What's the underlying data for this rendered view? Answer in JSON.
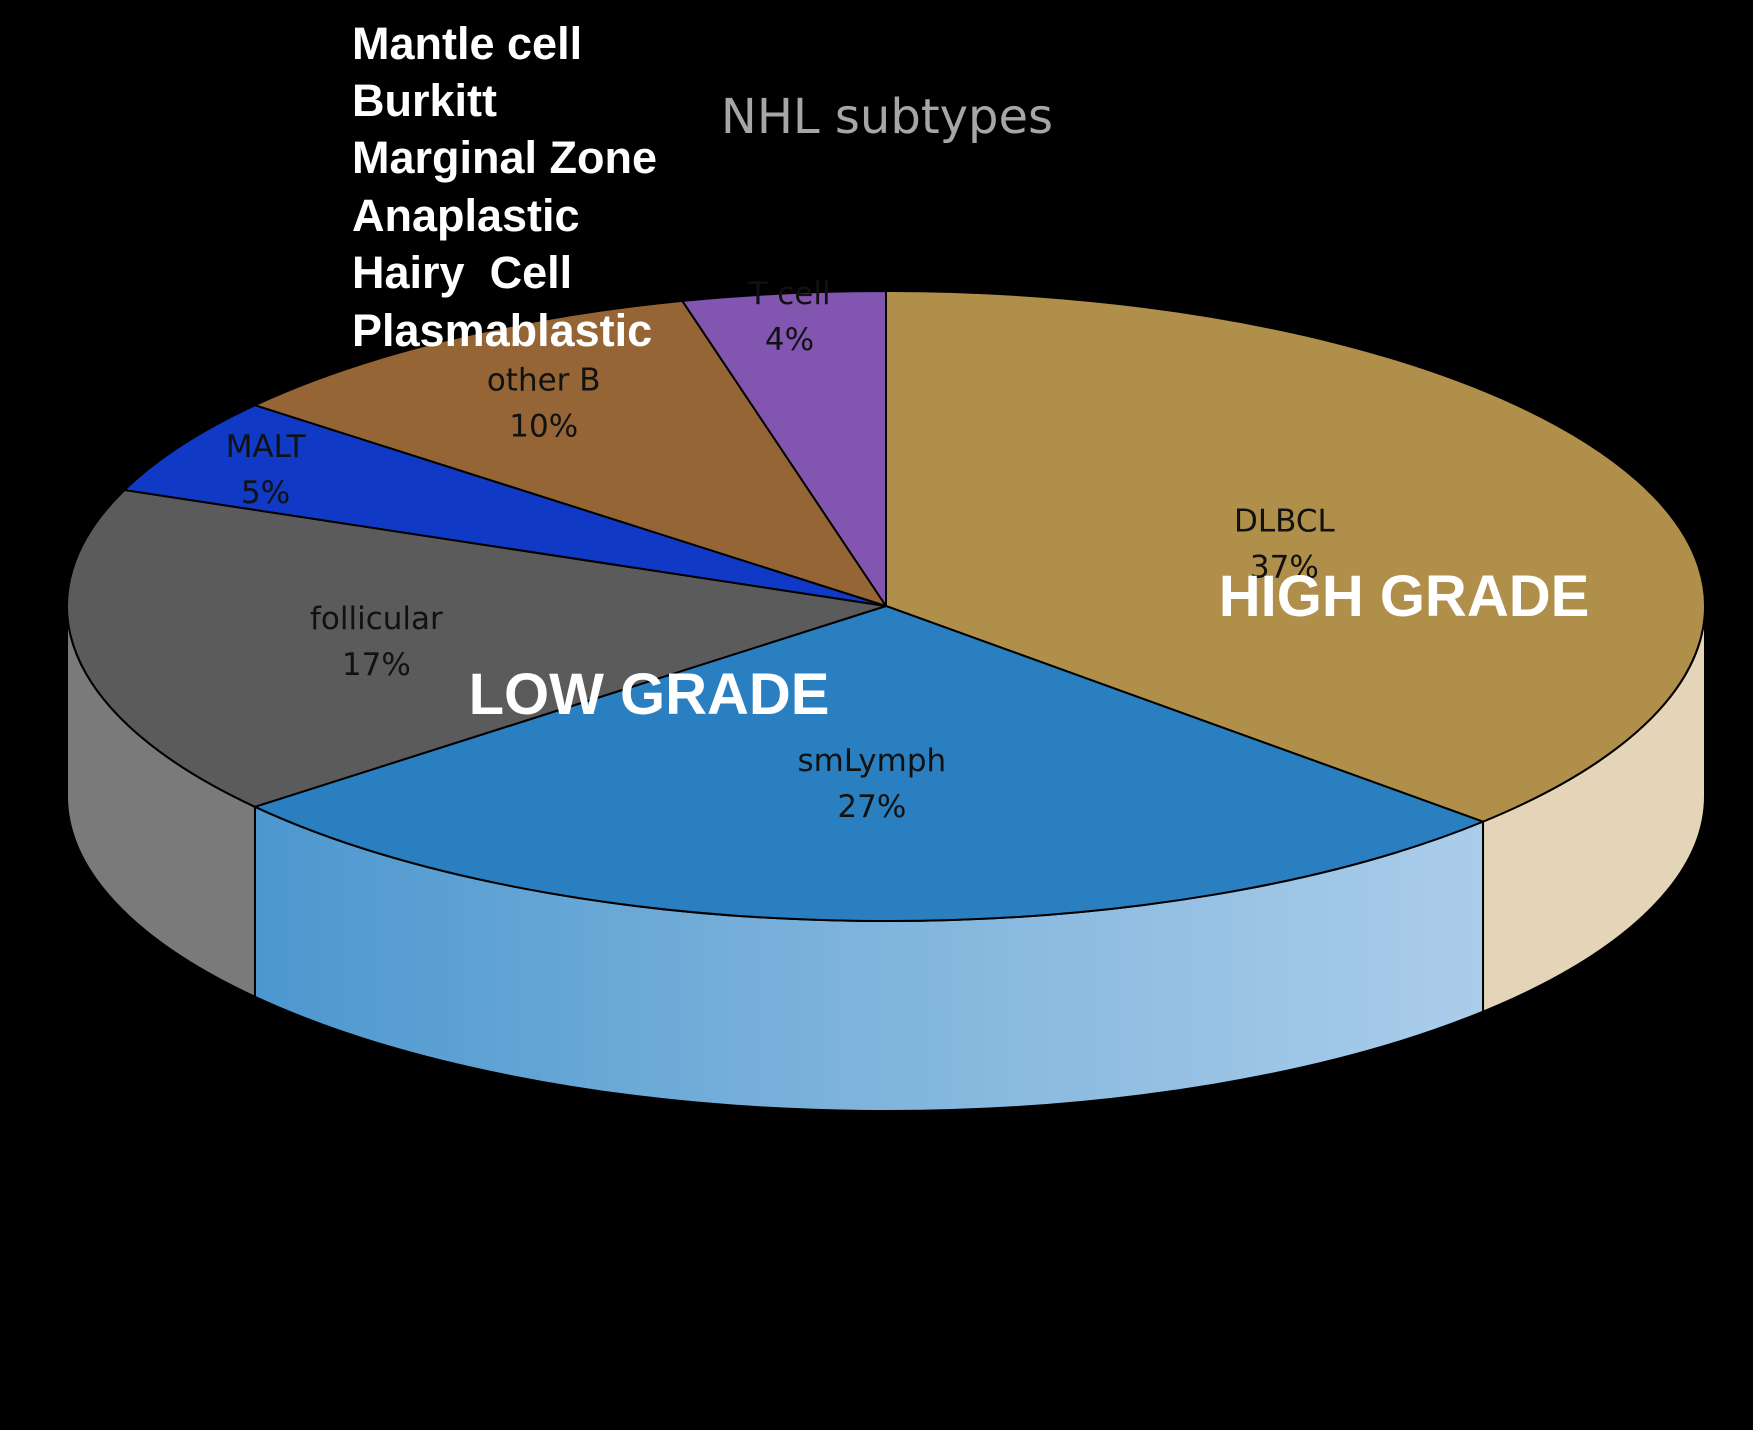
{
  "chart_data": {
    "type": "pie",
    "title": "NHL subtypes",
    "categories": [
      "DLBCL",
      "smLymph",
      "follicular",
      "MALT",
      "other B",
      "T cell"
    ],
    "values": [
      37,
      27,
      17,
      5,
      10,
      4
    ],
    "value_labels": [
      "37%",
      "27%",
      "17%",
      "5%",
      "10%",
      "4%"
    ],
    "colors": [
      "#b08f4a",
      "#2a7fc0",
      "#5b5b5b",
      "#1039c6",
      "#956536",
      "#8255b0"
    ],
    "side_colors": [
      "#e4d5b8",
      "#8ebbe0",
      "#7a7a7a",
      "#0a2890",
      "#6a4626",
      "#5d3a85"
    ],
    "style": "3d",
    "group_labels": [
      {
        "text": "HIGH GRADE",
        "color": "#ffffff"
      },
      {
        "text": "LOW GRADE",
        "color": "#ffffff"
      }
    ],
    "other_b_subtypes": [
      "Mantle cell",
      "Burkitt",
      "Marginal Zone",
      "Anaplastic",
      "Hairy  Cell",
      "Plasmablastic"
    ]
  }
}
